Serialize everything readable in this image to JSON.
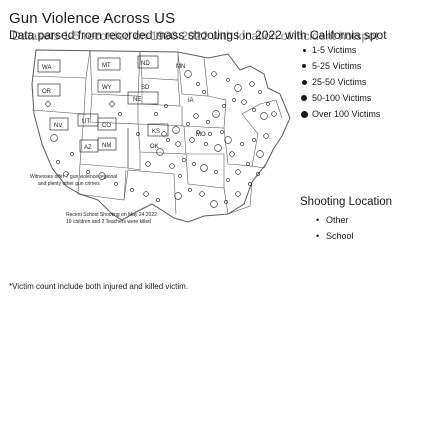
{
  "title": "Gun Violence Across US",
  "subtitle_layers": [
    "Data parsed from recorded mass shootings in 2022 with California spot",
    "Datasets 1-5 recorded on 1980-2022 with location of incident hotspot"
  ],
  "legend": {
    "items": [
      {
        "label": "1-5 Victims"
      },
      {
        "label": "5-25 Victims"
      },
      {
        "label": "25-50 Victims"
      },
      {
        "label": "50-100 Victims"
      },
      {
        "label": "Over 100 Victims"
      }
    ]
  },
  "location_legend": {
    "title": "Shooting Location",
    "items": [
      {
        "label": "Other"
      },
      {
        "label": "School"
      }
    ]
  },
  "annotations": {
    "west": "Witnesses offer 7 gun violence regional",
    "west2": "and plenty other gun crimes",
    "school": "Recent School Shooting on May 24 2022",
    "school2": "19 children and 2 Teachers were killed"
  },
  "state_labels": [
    "WA",
    "MT",
    "ND",
    "MN",
    "OR",
    "SD",
    "WY",
    "NE",
    "IA",
    "NV",
    "UT",
    "CO",
    "KS",
    "MO",
    "AZ",
    "NM",
    "OK"
  ],
  "footnote": "*Victim count include both injured and killed victim.",
  "colors": {
    "ink": "#1a1a1a",
    "state_stroke": "#5a5a5a",
    "map_bg": "#ffffff"
  }
}
